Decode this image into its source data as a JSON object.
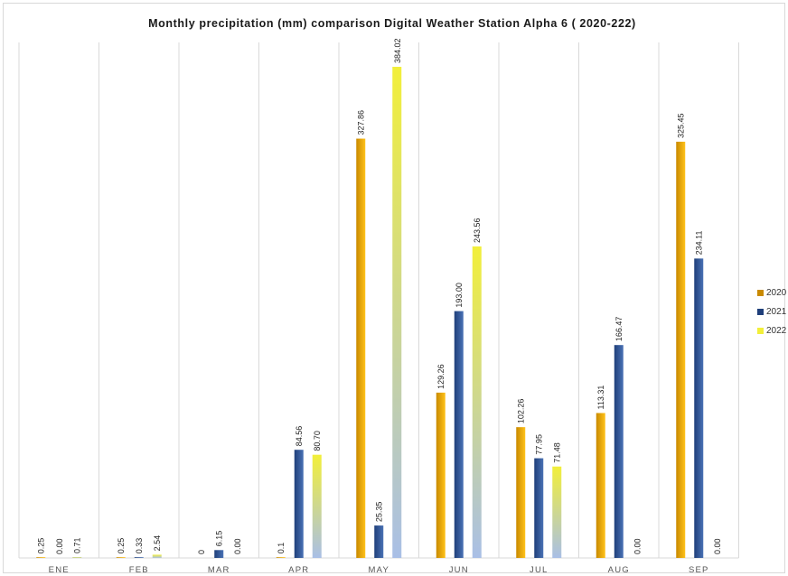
{
  "chart_data": {
    "type": "bar",
    "title": "Monthly precipitation (mm) comparison Digital Weather Station Alpha 6 ( 2020-222)",
    "categories": [
      "ENE",
      "FEB",
      "MAR",
      "APR",
      "MAY",
      "JUN",
      "JUL",
      "AUG",
      "SEP"
    ],
    "series": [
      {
        "name": "2020",
        "values": [
          0.25,
          0.25,
          0,
          0.1,
          327.86,
          129.26,
          102.26,
          113.31,
          325.45
        ],
        "labels": [
          "0.25",
          "0.25",
          "0",
          "0.1",
          "327.86",
          "129.26",
          "102.26",
          "113.31",
          "325.45"
        ],
        "color": "#c98a00",
        "color_light": "#ffc21a"
      },
      {
        "name": "2021",
        "values": [
          0.0,
          0.33,
          6.15,
          84.56,
          25.35,
          193.0,
          77.95,
          166.47,
          234.11
        ],
        "labels": [
          "0.00",
          "0.33",
          "6.15",
          "84.56",
          "25.35",
          "193.00",
          "77.95",
          "166.47",
          "234.11"
        ],
        "color": "#1f3f7a",
        "color_light": "#4a72b5"
      },
      {
        "name": "2022",
        "values": [
          0.71,
          2.54,
          0.0,
          80.7,
          384.02,
          243.56,
          71.48,
          0.0,
          0.0
        ],
        "labels": [
          "0.71",
          "2.54",
          "0.00",
          "80.70",
          "384.02",
          "243.56",
          "71.48",
          "0.00",
          "0.00"
        ],
        "color": "#f2ef3a",
        "color_light": "#a9bfe6"
      }
    ],
    "ylim": [
      0,
      384.02
    ],
    "grid": "vertical-separators",
    "legend": "right"
  }
}
